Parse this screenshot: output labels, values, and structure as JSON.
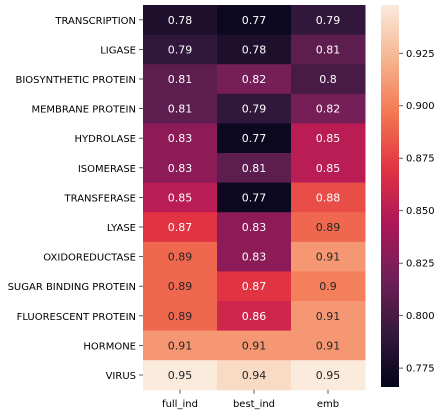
{
  "chart_data": {
    "type": "heatmap",
    "title": "",
    "xlabel": "",
    "ylabel": "",
    "columns": [
      "full_ind",
      "best_ind",
      "emb"
    ],
    "rows": [
      "TRANSCRIPTION",
      "LIGASE",
      "BIOSYNTHETIC PROTEIN",
      "MEMBRANE PROTEIN",
      "HYDROLASE",
      "ISOMERASE",
      "TRANSFERASE",
      "LYASE",
      "OXIDOREDUCTASE",
      "SUGAR BINDING PROTEIN",
      "FLUORESCENT PROTEIN",
      "HORMONE",
      "VIRUS"
    ],
    "values": [
      [
        0.78,
        0.77,
        0.79
      ],
      [
        0.79,
        0.78,
        0.81
      ],
      [
        0.81,
        0.82,
        0.8
      ],
      [
        0.81,
        0.79,
        0.82
      ],
      [
        0.83,
        0.77,
        0.85
      ],
      [
        0.83,
        0.81,
        0.85
      ],
      [
        0.85,
        0.77,
        0.88
      ],
      [
        0.87,
        0.83,
        0.89
      ],
      [
        0.89,
        0.83,
        0.91
      ],
      [
        0.89,
        0.87,
        0.9
      ],
      [
        0.89,
        0.86,
        0.91
      ],
      [
        0.91,
        0.91,
        0.91
      ],
      [
        0.95,
        0.94,
        0.95
      ]
    ],
    "colorbar": {
      "min": 0.766,
      "max": 0.948,
      "ticks": [
        "0.775",
        "0.800",
        "0.825",
        "0.850",
        "0.875",
        "0.900",
        "0.925"
      ],
      "colormap": "rocket",
      "stops": [
        "#03051a",
        "#35193e",
        "#701f57",
        "#ad1759",
        "#e13342",
        "#f37651",
        "#f6b48f",
        "#faebdd"
      ]
    },
    "grid": false,
    "legend": "colorbar-right"
  }
}
